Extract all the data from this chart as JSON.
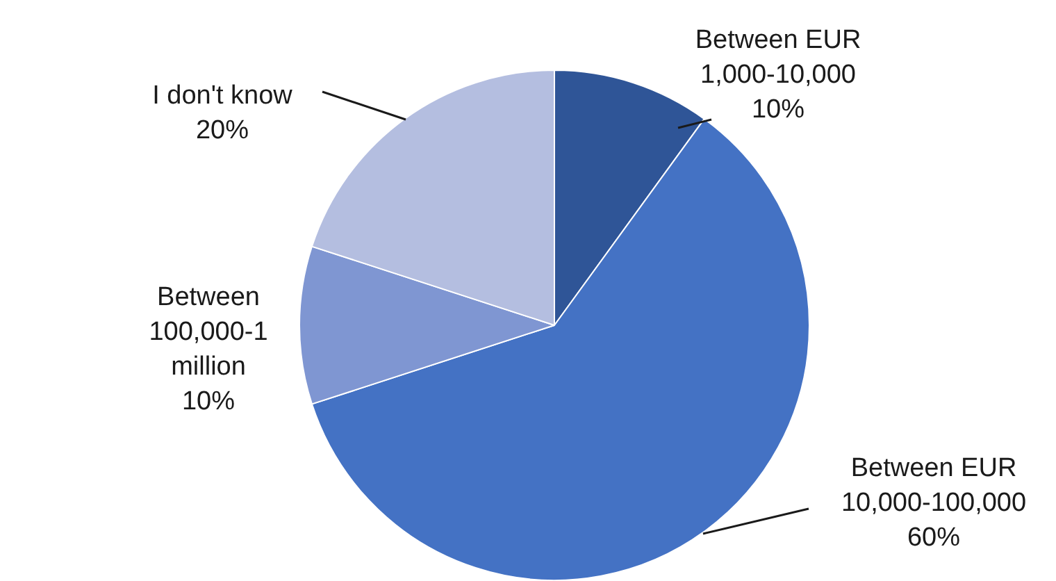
{
  "chart_data": {
    "type": "pie",
    "categories": [
      "Between EUR 1,000-10,000",
      "Between EUR 10,000-100,000",
      "Between 100,000-1 million",
      "I don't know"
    ],
    "values": [
      10,
      60,
      10,
      20
    ],
    "value_labels": [
      "10%",
      "60%",
      "10%",
      "20%"
    ],
    "colors": [
      "#2f5597",
      "#4472c4",
      "#7f96d2",
      "#b4bee0"
    ],
    "legend": false
  }
}
